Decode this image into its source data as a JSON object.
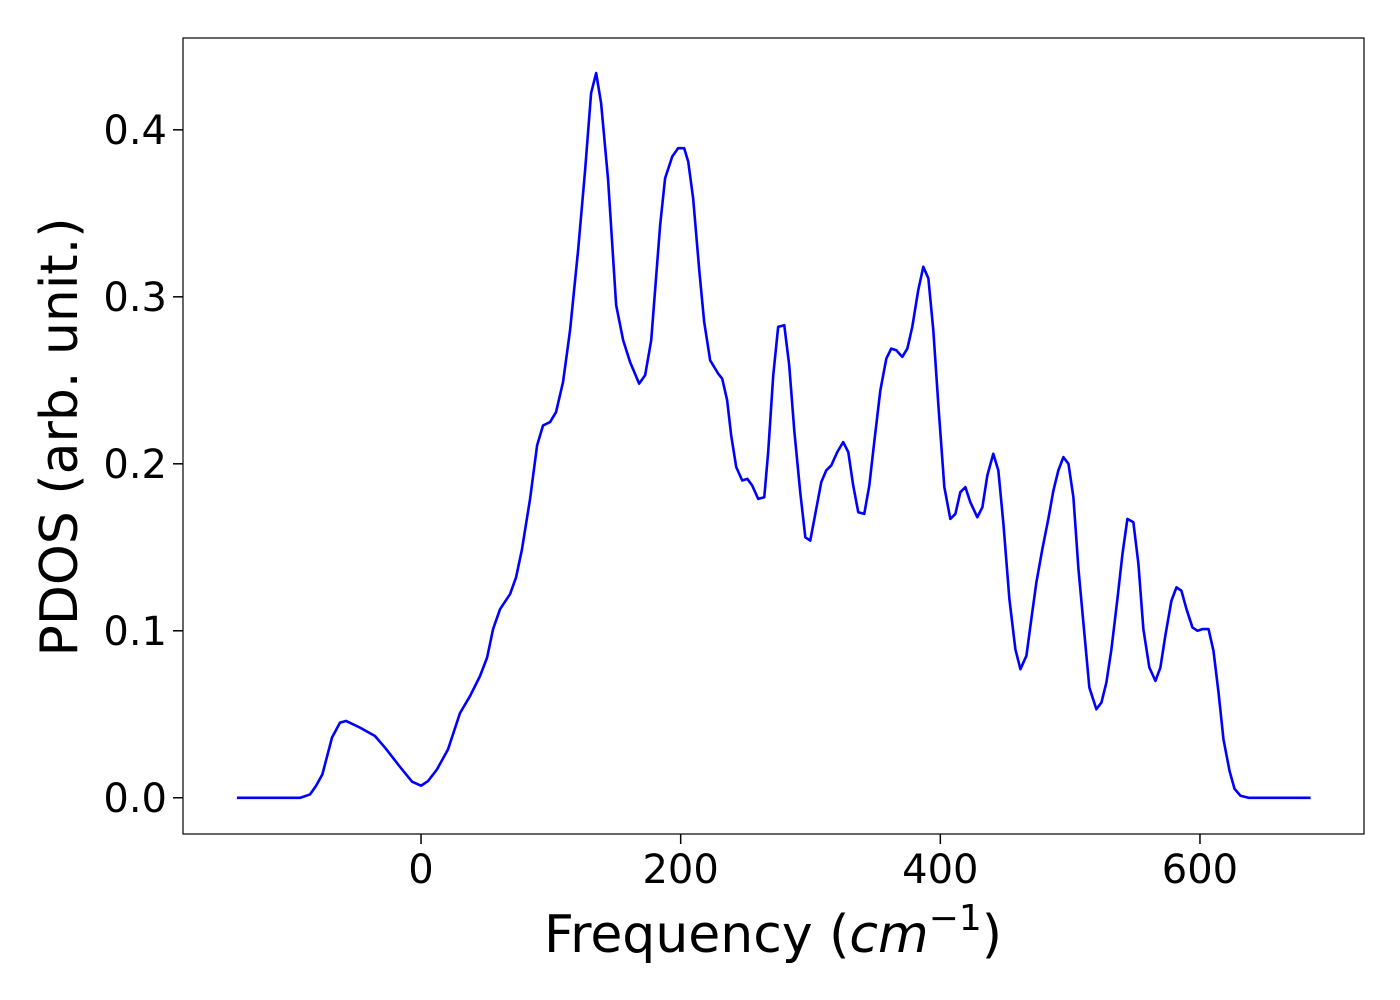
{
  "chart_data": {
    "type": "line",
    "xlabel": [
      "Frequency (",
      "cm",
      "−1",
      ")"
    ],
    "ylabel": "PDOS (arb. unit.)",
    "x": [
      -141.8,
      -93,
      -85.5,
      -81,
      -76,
      -68.6,
      -62.4,
      -57.8,
      -47,
      -35.5,
      -27.7,
      -16.2,
      -6.9,
      0,
      5.4,
      12.3,
      20.8,
      30,
      37.8,
      45.5,
      50.9,
      55.5,
      60.9,
      68.6,
      73.2,
      77.8,
      84,
      89.4,
      94,
      99.4,
      104,
      109.4,
      114.8,
      121,
      126.4,
      131,
      134.9,
      138.7,
      144.1,
      150.3,
      155.7,
      161,
      168,
      172.6,
      177.3,
      184.2,
      188,
      193.5,
      198,
      202.7,
      205.8,
      209.6,
      214.3,
      218.1,
      222.7,
      228.9,
      232,
      235.8,
      238.9,
      242.8,
      247.4,
      251.3,
      255.1,
      259.7,
      264.4,
      267.4,
      271.3,
      275.1,
      279.8,
      283.6,
      287.5,
      292.1,
      296,
      299.8,
      303.7,
      308.3,
      312.1,
      316,
      320.6,
      325.2,
      329.1,
      332.9,
      336.8,
      341.4,
      345.3,
      349.1,
      353.8,
      358.4,
      362.2,
      366.1,
      370.7,
      374.6,
      378.4,
      383,
      386.9,
      390.8,
      394.6,
      398.5,
      403.1,
      407.7,
      411.6,
      415.4,
      419.3,
      423.1,
      428.5,
      432.4,
      436.2,
      440.8,
      444.7,
      448.6,
      453.2,
      457.8,
      461.7,
      466.3,
      470.1,
      474,
      478.6,
      483.2,
      487.1,
      490.9,
      494.8,
      498.7,
      502.5,
      506.4,
      511,
      514.8,
      520.2,
      524.1,
      527.9,
      531.8,
      536.4,
      540.3,
      544.1,
      548.7,
      552.6,
      556.4,
      561,
      565.7,
      569.5,
      573.3,
      578,
      581.9,
      585.7,
      589.6,
      594.2,
      598.1,
      601.9,
      606.6,
      610.4,
      614.3,
      618.1,
      622.8,
      626.6,
      631.2,
      637.4,
      685.2
    ],
    "series": [
      {
        "name": "PDOS",
        "color": "#0000ff",
        "values": [
          0,
          0,
          0.002,
          0.007,
          0.014,
          0.036,
          0.045,
          0.046,
          0.042,
          0.037,
          0.03,
          0.0185,
          0.0096,
          0.0072,
          0.01,
          0.017,
          0.029,
          0.0507,
          0.061,
          0.073,
          0.084,
          0.101,
          0.113,
          0.122,
          0.132,
          0.149,
          0.179,
          0.211,
          0.223,
          0.225,
          0.231,
          0.249,
          0.28,
          0.328,
          0.376,
          0.422,
          0.434,
          0.416,
          0.37,
          0.295,
          0.274,
          0.261,
          0.248,
          0.253,
          0.274,
          0.343,
          0.371,
          0.384,
          0.389,
          0.389,
          0.381,
          0.359,
          0.316,
          0.285,
          0.262,
          0.254,
          0.251,
          0.238,
          0.217,
          0.198,
          0.19,
          0.191,
          0.187,
          0.179,
          0.18,
          0.207,
          0.253,
          0.282,
          0.283,
          0.259,
          0.22,
          0.183,
          0.156,
          0.154,
          0.17,
          0.189,
          0.196,
          0.199,
          0.207,
          0.213,
          0.207,
          0.187,
          0.171,
          0.17,
          0.187,
          0.213,
          0.244,
          0.263,
          0.269,
          0.268,
          0.264,
          0.269,
          0.282,
          0.304,
          0.318,
          0.311,
          0.28,
          0.235,
          0.186,
          0.167,
          0.17,
          0.183,
          0.186,
          0.177,
          0.168,
          0.174,
          0.193,
          0.206,
          0.196,
          0.164,
          0.119,
          0.089,
          0.077,
          0.085,
          0.107,
          0.129,
          0.149,
          0.167,
          0.184,
          0.196,
          0.204,
          0.2,
          0.18,
          0.137,
          0.098,
          0.066,
          0.053,
          0.057,
          0.069,
          0.089,
          0.119,
          0.146,
          0.167,
          0.165,
          0.14,
          0.101,
          0.078,
          0.07,
          0.078,
          0.097,
          0.118,
          0.126,
          0.124,
          0.113,
          0.102,
          0.1,
          0.101,
          0.101,
          0.088,
          0.063,
          0.035,
          0.016,
          0.0054,
          0.0012,
          0,
          0
        ]
      }
    ],
    "xlim": [
      -183.35,
      726.35
    ],
    "xticks": [
      0,
      200,
      400,
      600
    ],
    "ylim": [
      -0.0217,
      0.455
    ],
    "yticks": [
      {
        "value": 0,
        "label": "0.0"
      },
      0.1,
      0.2,
      0.3,
      0.4
    ],
    "grid": false
  }
}
